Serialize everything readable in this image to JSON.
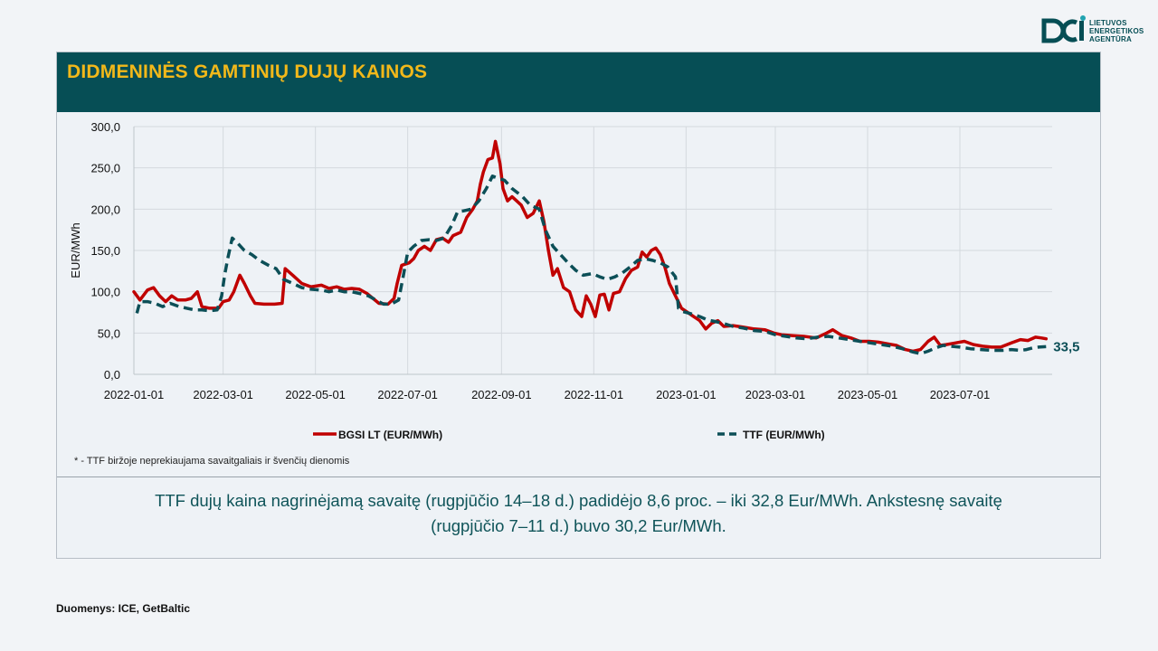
{
  "logo": {
    "line1": "LIETUVOS",
    "line2": "ENERGETIKOS",
    "line3": "AGENTŪRA"
  },
  "header": {
    "title": "DIDMENINĖS GAMTINIŲ DUJŲ KAINOS"
  },
  "footnote": "* - TTF biržoje neprekiaujama savaitgaliais ir švenčių dienomis",
  "summary": {
    "line1": "TTF dujų kaina nagrinėjamą savaitę (rugpjūčio 14–18 d.) padidėjo 8,6 proc. – iki 32,8 Eur/MWh. Ankstesnę savaitę",
    "line2": "(rugpjūčio 7–11 d.) buvo 30,2 Eur/MWh."
  },
  "source": "Duomenys: ICE, GetBaltic",
  "chart_data": {
    "type": "line",
    "title": "",
    "xlabel": "",
    "ylabel": "EUR/MWh",
    "ylim": [
      0,
      300
    ],
    "xlim": [
      "2022-01-01",
      "2023-08-31"
    ],
    "yticks": [
      "0,0",
      "50,0",
      "100,0",
      "150,0",
      "200,0",
      "250,0",
      "300,0"
    ],
    "xticks": [
      "2022-01-01",
      "2022-03-01",
      "2022-05-01",
      "2022-07-01",
      "2022-09-01",
      "2022-11-01",
      "2023-01-01",
      "2023-03-01",
      "2023-05-01",
      "2023-07-01"
    ],
    "grid": true,
    "legend_position": "bottom",
    "end_label": "33,5",
    "series": [
      {
        "name": "BGSI LT (EUR/MWh)",
        "color": "#c00000",
        "style": "solid",
        "points": [
          [
            "2022-01-01",
            100
          ],
          [
            "2022-01-05",
            90
          ],
          [
            "2022-01-10",
            102
          ],
          [
            "2022-01-14",
            105
          ],
          [
            "2022-01-18",
            95
          ],
          [
            "2022-01-22",
            88
          ],
          [
            "2022-01-26",
            95
          ],
          [
            "2022-01-30",
            90
          ],
          [
            "2022-02-04",
            90
          ],
          [
            "2022-02-08",
            92
          ],
          [
            "2022-02-12",
            100
          ],
          [
            "2022-02-15",
            82
          ],
          [
            "2022-02-20",
            80
          ],
          [
            "2022-02-26",
            80
          ],
          [
            "2022-03-01",
            88
          ],
          [
            "2022-03-05",
            90
          ],
          [
            "2022-03-08",
            100
          ],
          [
            "2022-03-12",
            120
          ],
          [
            "2022-03-15",
            110
          ],
          [
            "2022-03-19",
            95
          ],
          [
            "2022-03-22",
            86
          ],
          [
            "2022-03-28",
            85
          ],
          [
            "2022-04-04",
            85
          ],
          [
            "2022-04-09",
            86
          ],
          [
            "2022-04-11",
            128
          ],
          [
            "2022-04-16",
            120
          ],
          [
            "2022-04-22",
            110
          ],
          [
            "2022-04-28",
            106
          ],
          [
            "2022-05-05",
            108
          ],
          [
            "2022-05-10",
            104
          ],
          [
            "2022-05-15",
            106
          ],
          [
            "2022-05-20",
            103
          ],
          [
            "2022-05-25",
            104
          ],
          [
            "2022-05-30",
            103
          ],
          [
            "2022-06-04",
            98
          ],
          [
            "2022-06-08",
            92
          ],
          [
            "2022-06-12",
            86
          ],
          [
            "2022-06-18",
            85
          ],
          [
            "2022-06-22",
            92
          ],
          [
            "2022-06-24",
            110
          ],
          [
            "2022-06-27",
            132
          ],
          [
            "2022-07-02",
            135
          ],
          [
            "2022-07-05",
            140
          ],
          [
            "2022-07-08",
            150
          ],
          [
            "2022-07-12",
            155
          ],
          [
            "2022-07-16",
            150
          ],
          [
            "2022-07-20",
            163
          ],
          [
            "2022-07-24",
            165
          ],
          [
            "2022-07-28",
            160
          ],
          [
            "2022-07-31",
            168
          ],
          [
            "2022-08-05",
            172
          ],
          [
            "2022-08-09",
            190
          ],
          [
            "2022-08-13",
            200
          ],
          [
            "2022-08-16",
            210
          ],
          [
            "2022-08-18",
            230
          ],
          [
            "2022-08-20",
            245
          ],
          [
            "2022-08-23",
            260
          ],
          [
            "2022-08-26",
            262
          ],
          [
            "2022-08-28",
            282
          ],
          [
            "2022-08-31",
            255
          ],
          [
            "2022-09-02",
            225
          ],
          [
            "2022-09-05",
            210
          ],
          [
            "2022-09-08",
            215
          ],
          [
            "2022-09-11",
            210
          ],
          [
            "2022-09-14",
            205
          ],
          [
            "2022-09-18",
            190
          ],
          [
            "2022-09-22",
            195
          ],
          [
            "2022-09-26",
            210
          ],
          [
            "2022-09-29",
            185
          ],
          [
            "2022-10-02",
            150
          ],
          [
            "2022-10-05",
            120
          ],
          [
            "2022-10-08",
            128
          ],
          [
            "2022-10-12",
            105
          ],
          [
            "2022-10-16",
            100
          ],
          [
            "2022-10-20",
            78
          ],
          [
            "2022-10-24",
            70
          ],
          [
            "2022-10-27",
            95
          ],
          [
            "2022-10-30",
            85
          ],
          [
            "2022-11-02",
            70
          ],
          [
            "2022-11-05",
            96
          ],
          [
            "2022-11-08",
            97
          ],
          [
            "2022-11-11",
            78
          ],
          [
            "2022-11-14",
            98
          ],
          [
            "2022-11-18",
            100
          ],
          [
            "2022-11-22",
            116
          ],
          [
            "2022-11-26",
            126
          ],
          [
            "2022-11-30",
            130
          ],
          [
            "2022-12-03",
            148
          ],
          [
            "2022-12-06",
            142
          ],
          [
            "2022-12-09",
            150
          ],
          [
            "2022-12-12",
            153
          ],
          [
            "2022-12-15",
            145
          ],
          [
            "2022-12-18",
            130
          ],
          [
            "2022-12-21",
            110
          ],
          [
            "2022-12-25",
            95
          ],
          [
            "2022-12-29",
            80
          ],
          [
            "2023-01-02",
            75
          ],
          [
            "2023-01-06",
            70
          ],
          [
            "2023-01-10",
            65
          ],
          [
            "2023-01-14",
            55
          ],
          [
            "2023-01-18",
            62
          ],
          [
            "2023-01-22",
            65
          ],
          [
            "2023-01-26",
            58
          ],
          [
            "2023-02-01",
            59
          ],
          [
            "2023-02-08",
            57
          ],
          [
            "2023-02-15",
            55
          ],
          [
            "2023-02-22",
            54
          ],
          [
            "2023-02-28",
            50
          ],
          [
            "2023-03-05",
            48
          ],
          [
            "2023-03-12",
            47
          ],
          [
            "2023-03-20",
            46
          ],
          [
            "2023-03-28",
            44
          ],
          [
            "2023-04-04",
            50
          ],
          [
            "2023-04-08",
            54
          ],
          [
            "2023-04-14",
            47
          ],
          [
            "2023-04-20",
            44
          ],
          [
            "2023-04-26",
            40
          ],
          [
            "2023-05-02",
            40
          ],
          [
            "2023-05-08",
            39
          ],
          [
            "2023-05-14",
            37
          ],
          [
            "2023-05-20",
            35
          ],
          [
            "2023-05-26",
            30
          ],
          [
            "2023-05-31",
            28
          ],
          [
            "2023-06-05",
            30
          ],
          [
            "2023-06-10",
            40
          ],
          [
            "2023-06-14",
            45
          ],
          [
            "2023-06-18",
            35
          ],
          [
            "2023-06-22",
            36
          ],
          [
            "2023-06-28",
            38
          ],
          [
            "2023-07-04",
            40
          ],
          [
            "2023-07-10",
            36
          ],
          [
            "2023-07-16",
            34
          ],
          [
            "2023-07-22",
            33
          ],
          [
            "2023-07-28",
            33
          ],
          [
            "2023-08-04",
            38
          ],
          [
            "2023-08-10",
            42
          ],
          [
            "2023-08-15",
            41
          ],
          [
            "2023-08-20",
            45
          ],
          [
            "2023-08-24",
            44
          ],
          [
            "2023-08-27",
            43
          ]
        ]
      },
      {
        "name": "TTF (EUR/MWh)",
        "color": "#0c4f57",
        "style": "dashed",
        "points": [
          [
            "2022-01-03",
            74
          ],
          [
            "2022-01-05",
            88
          ],
          [
            "2022-01-10",
            88
          ],
          [
            "2022-01-15",
            86
          ],
          [
            "2022-01-20",
            82
          ],
          [
            "2022-01-25",
            86
          ],
          [
            "2022-01-31",
            82
          ],
          [
            "2022-02-05",
            80
          ],
          [
            "2022-02-10",
            78
          ],
          [
            "2022-02-15",
            78
          ],
          [
            "2022-02-20",
            77
          ],
          [
            "2022-02-25",
            78
          ],
          [
            "2022-02-28",
            95
          ],
          [
            "2022-03-02",
            120
          ],
          [
            "2022-03-04",
            140
          ],
          [
            "2022-03-07",
            165
          ],
          [
            "2022-03-10",
            160
          ],
          [
            "2022-03-15",
            150
          ],
          [
            "2022-03-20",
            145
          ],
          [
            "2022-03-25",
            138
          ],
          [
            "2022-03-31",
            132
          ],
          [
            "2022-04-05",
            128
          ],
          [
            "2022-04-10",
            115
          ],
          [
            "2022-04-16",
            110
          ],
          [
            "2022-04-22",
            105
          ],
          [
            "2022-04-28",
            103
          ],
          [
            "2022-05-05",
            102
          ],
          [
            "2022-05-10",
            100
          ],
          [
            "2022-05-15",
            102
          ],
          [
            "2022-05-20",
            100
          ],
          [
            "2022-05-25",
            100
          ],
          [
            "2022-05-30",
            98
          ],
          [
            "2022-06-05",
            95
          ],
          [
            "2022-06-10",
            90
          ],
          [
            "2022-06-15",
            85
          ],
          [
            "2022-06-20",
            85
          ],
          [
            "2022-06-25",
            90
          ],
          [
            "2022-06-28",
            118
          ],
          [
            "2022-07-01",
            148
          ],
          [
            "2022-07-05",
            155
          ],
          [
            "2022-07-10",
            162
          ],
          [
            "2022-07-15",
            163
          ],
          [
            "2022-07-20",
            162
          ],
          [
            "2022-07-25",
            165
          ],
          [
            "2022-07-30",
            180
          ],
          [
            "2022-08-03",
            197
          ],
          [
            "2022-08-07",
            198
          ],
          [
            "2022-08-12",
            200
          ],
          [
            "2022-08-17",
            210
          ],
          [
            "2022-08-22",
            225
          ],
          [
            "2022-08-26",
            240
          ],
          [
            "2022-08-29",
            238
          ],
          [
            "2022-09-03",
            235
          ],
          [
            "2022-09-08",
            225
          ],
          [
            "2022-09-15",
            215
          ],
          [
            "2022-09-20",
            205
          ],
          [
            "2022-09-26",
            200
          ],
          [
            "2022-09-30",
            175
          ],
          [
            "2022-10-05",
            155
          ],
          [
            "2022-10-10",
            145
          ],
          [
            "2022-10-15",
            135
          ],
          [
            "2022-10-20",
            126
          ],
          [
            "2022-10-25",
            120
          ],
          [
            "2022-10-31",
            122
          ],
          [
            "2022-11-05",
            118
          ],
          [
            "2022-11-10",
            115
          ],
          [
            "2022-11-15",
            118
          ],
          [
            "2022-11-20",
            123
          ],
          [
            "2022-11-25",
            130
          ],
          [
            "2022-11-30",
            138
          ],
          [
            "2022-12-05",
            140
          ],
          [
            "2022-12-10",
            138
          ],
          [
            "2022-12-15",
            135
          ],
          [
            "2022-12-20",
            130
          ],
          [
            "2022-12-25",
            118
          ],
          [
            "2022-12-27",
            80
          ],
          [
            "2022-12-30",
            76
          ],
          [
            "2023-01-05",
            73
          ],
          [
            "2023-01-10",
            70
          ],
          [
            "2023-01-15",
            66
          ],
          [
            "2023-01-20",
            64
          ],
          [
            "2023-01-25",
            62
          ],
          [
            "2023-02-01",
            58
          ],
          [
            "2023-02-08",
            56
          ],
          [
            "2023-02-15",
            53
          ],
          [
            "2023-02-22",
            52
          ],
          [
            "2023-03-01",
            48
          ],
          [
            "2023-03-08",
            46
          ],
          [
            "2023-03-15",
            44
          ],
          [
            "2023-03-22",
            43
          ],
          [
            "2023-03-29",
            45
          ],
          [
            "2023-04-05",
            46
          ],
          [
            "2023-04-12",
            44
          ],
          [
            "2023-04-19",
            42
          ],
          [
            "2023-04-26",
            40
          ],
          [
            "2023-05-03",
            38
          ],
          [
            "2023-05-10",
            36
          ],
          [
            "2023-05-17",
            34
          ],
          [
            "2023-05-24",
            31
          ],
          [
            "2023-05-31",
            27
          ],
          [
            "2023-06-05",
            25
          ],
          [
            "2023-06-10",
            28
          ],
          [
            "2023-06-15",
            32
          ],
          [
            "2023-06-20",
            35
          ],
          [
            "2023-06-25",
            34
          ],
          [
            "2023-07-01",
            33
          ],
          [
            "2023-07-08",
            31
          ],
          [
            "2023-07-15",
            30
          ],
          [
            "2023-07-22",
            29
          ],
          [
            "2023-07-29",
            29
          ],
          [
            "2023-08-04",
            30
          ],
          [
            "2023-08-10",
            29
          ],
          [
            "2023-08-14",
            30
          ],
          [
            "2023-08-18",
            32
          ],
          [
            "2023-08-22",
            33
          ],
          [
            "2023-08-27",
            33.5
          ]
        ]
      }
    ]
  }
}
